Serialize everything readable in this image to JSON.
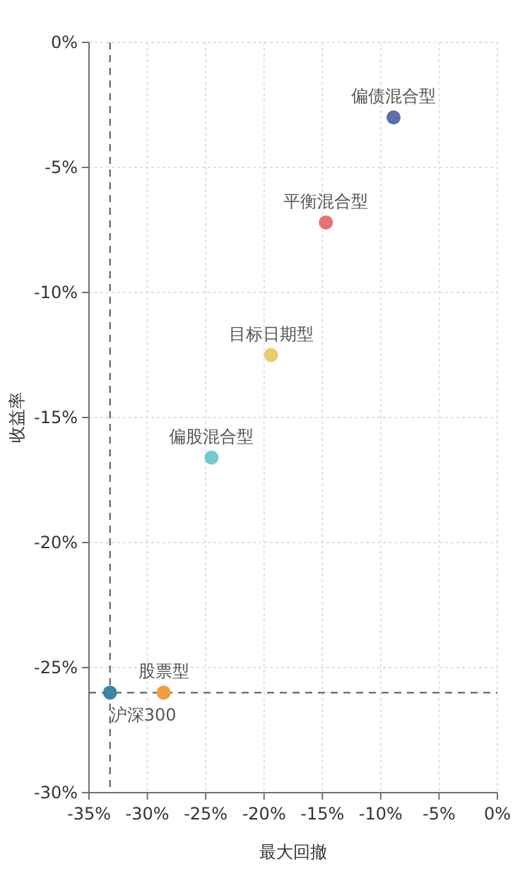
{
  "chart_data": {
    "type": "scatter",
    "xlabel": "最大回撤",
    "ylabel": "收益率",
    "xlim": [
      -35,
      0
    ],
    "ylim": [
      -30,
      0
    ],
    "xticks": [
      {
        "value": -35,
        "label": "-35%"
      },
      {
        "value": -30,
        "label": "-30%"
      },
      {
        "value": -25,
        "label": "-25%"
      },
      {
        "value": -20,
        "label": "-20%"
      },
      {
        "value": -15,
        "label": "-15%"
      },
      {
        "value": -10,
        "label": "-10%"
      },
      {
        "value": -5,
        "label": "-5%"
      },
      {
        "value": 0,
        "label": "0%"
      }
    ],
    "yticks": [
      {
        "value": -30,
        "label": "-30%"
      },
      {
        "value": -25,
        "label": "-25%"
      },
      {
        "value": -20,
        "label": "-20%"
      },
      {
        "value": -15,
        "label": "-15%"
      },
      {
        "value": -10,
        "label": "-10%"
      },
      {
        "value": -5,
        "label": "-5%"
      },
      {
        "value": 0,
        "label": "0%"
      }
    ],
    "grid": true,
    "marker": "circle",
    "series": [
      {
        "name": "偏债混合型",
        "color": "#5e6ea6",
        "x": [
          -8.9
        ],
        "values": [
          -3.0
        ]
      },
      {
        "name": "平衡混合型",
        "color": "#e57373",
        "x": [
          -14.7
        ],
        "values": [
          -7.2
        ]
      },
      {
        "name": "目标日期型",
        "color": "#e8cd6e",
        "x": [
          -19.4
        ],
        "values": [
          -12.5
        ]
      },
      {
        "name": "偏股混合型",
        "color": "#72cbcb",
        "x": [
          -24.5
        ],
        "values": [
          -16.6
        ]
      },
      {
        "name": "股票型",
        "color": "#f39c3c",
        "x": [
          -28.6
        ],
        "values": [
          -26.0
        ]
      },
      {
        "name": "沪深300",
        "color": "#3d86a8",
        "x": [
          -33.2
        ],
        "values": [
          -26.0
        ]
      }
    ],
    "ref_lines": [
      {
        "axis": "x",
        "value": -33.2,
        "line_style": "dashed"
      },
      {
        "axis": "y",
        "value": -26.0,
        "line_style": "dashed"
      }
    ]
  }
}
